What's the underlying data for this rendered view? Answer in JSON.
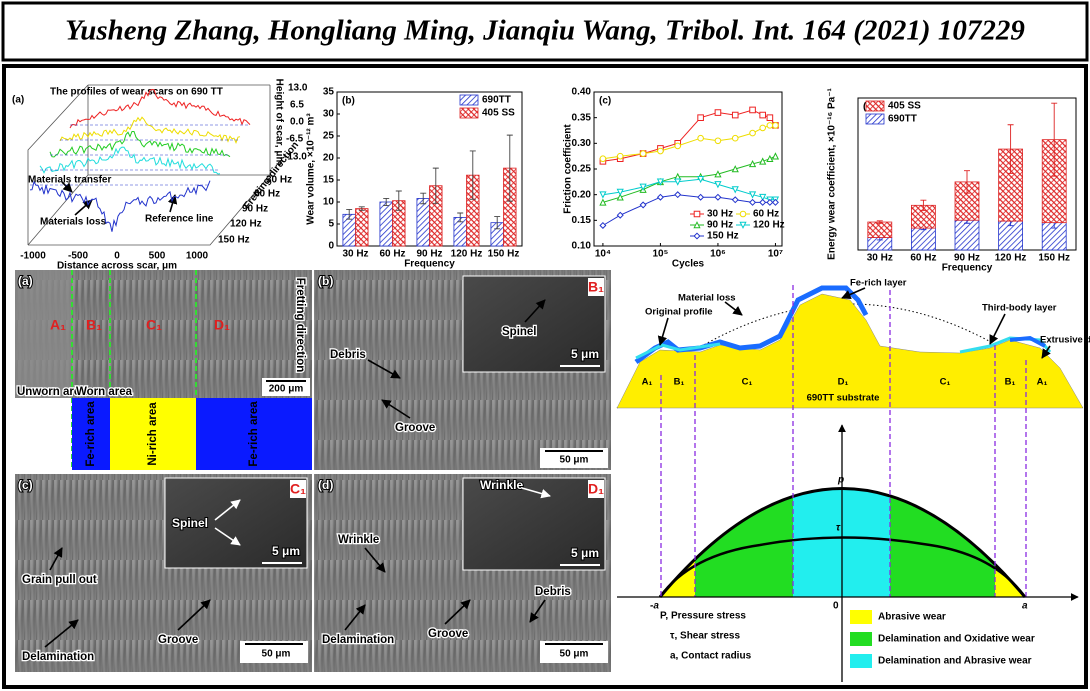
{
  "header": {
    "title": "Yusheng Zhang, Hongliang Ming, Jianqiu Wang, Tribol. Int.  164 (2021) 107229"
  },
  "profiles": {
    "label": "(a)",
    "title": "The profiles of wear scars on 690 TT",
    "x_label": "Distance across scar, μm",
    "y_label": "Height of scar, μm",
    "x_tick_labels": [
      "-1000",
      "-500",
      "0",
      "500",
      "1000"
    ],
    "z_tick_labels": [
      "13.0",
      "6.5",
      "0.0",
      "-6.5",
      "-13.0"
    ],
    "series_labels": [
      "30 Hz",
      "60 Hz",
      "90 Hz",
      "120 Hz",
      "150 Hz"
    ],
    "annotations": [
      "Materials transfer",
      "Materials loss",
      "Reference line",
      "Fretting direction"
    ]
  },
  "chart_data": [
    {
      "type": "bar",
      "label": "(b)",
      "x_label": "Frequency",
      "y_label": "Wear volume, ×10⁻¹² m³",
      "categories": [
        "30 Hz",
        "60 Hz",
        "90 Hz",
        "120 Hz",
        "150 Hz"
      ],
      "series": [
        {
          "name": "690TT",
          "color": "#2233cc",
          "values": [
            7.2,
            10,
            10.8,
            6.5,
            5.3
          ],
          "errors": [
            1.1,
            0.8,
            1.2,
            1.0,
            1.4
          ]
        },
        {
          "name": "405 SS",
          "color": "#dd2222",
          "values": [
            8.5,
            10.3,
            13.7,
            16.1,
            17.7
          ],
          "errors": [
            0.4,
            2.2,
            4.0,
            5.5,
            7.5
          ]
        }
      ],
      "ylim": [
        0,
        35
      ],
      "yticks": [
        0,
        5,
        10,
        15,
        20,
        25,
        30,
        35
      ],
      "legend": "upper right"
    },
    {
      "type": "line",
      "label": "(c)",
      "x_label": "Cycles",
      "y_label": "Friction coefficient",
      "xscale": "log",
      "x": [
        10000,
        20000,
        50000,
        100000,
        200000,
        500000,
        1000000,
        2000000,
        4000000,
        6000000,
        8000000,
        10000000
      ],
      "xlim": [
        7000,
        13000000
      ],
      "xticks": [
        {
          "value": 10000,
          "label": "10⁴"
        },
        {
          "value": 100000,
          "label": "10⁵"
        },
        {
          "value": 1000000,
          "label": "10⁶"
        },
        {
          "value": 10000000,
          "label": "10⁷"
        }
      ],
      "ylim": [
        0.1,
        0.4
      ],
      "yticks": [
        {
          "value": 0.1,
          "label": "0.10"
        },
        {
          "value": 0.15,
          "label": "0.15"
        },
        {
          "value": 0.2,
          "label": "0.20"
        },
        {
          "value": 0.25,
          "label": "0.25"
        },
        {
          "value": 0.3,
          "label": "0.30"
        },
        {
          "value": 0.35,
          "label": "0.35"
        },
        {
          "value": 0.4,
          "label": "0.40"
        }
      ],
      "series": [
        {
          "name": "30 Hz",
          "color": "#ee2222",
          "marker": "square",
          "values": [
            0.265,
            0.27,
            0.28,
            0.29,
            0.3,
            0.35,
            0.36,
            0.355,
            0.365,
            0.355,
            0.35,
            0.335
          ]
        },
        {
          "name": "60 Hz",
          "color": "#eedd00",
          "marker": "circle",
          "values": [
            0.27,
            0.275,
            0.28,
            0.285,
            0.295,
            0.31,
            0.305,
            0.31,
            0.32,
            0.33,
            0.335,
            0.335
          ]
        },
        {
          "name": "90 Hz",
          "color": "#22bb22",
          "marker": "triangle",
          "values": [
            0.185,
            0.195,
            0.21,
            0.225,
            0.235,
            0.235,
            0.24,
            0.25,
            0.26,
            0.265,
            0.27,
            0.275
          ]
        },
        {
          "name": "120 Hz",
          "color": "#00cccc",
          "marker": "triangle-down",
          "values": [
            0.2,
            0.205,
            0.215,
            0.225,
            0.225,
            0.23,
            0.22,
            0.21,
            0.2,
            0.195,
            0.19,
            0.19
          ]
        },
        {
          "name": "150 Hz",
          "color": "#2233cc",
          "marker": "diamond",
          "values": [
            0.14,
            0.16,
            0.18,
            0.195,
            0.2,
            0.195,
            0.195,
            0.19,
            0.185,
            0.185,
            0.185,
            0.185
          ]
        }
      ],
      "legend": "lower right"
    },
    {
      "type": "bar",
      "stacked": true,
      "label": "(d)",
      "x_label": "Frequency",
      "y_label": "Energy wear coefficient, ×10⁻¹⁶ Pa⁻¹",
      "categories": [
        "30 Hz",
        "60 Hz",
        "90 Hz",
        "120 Hz",
        "150 Hz"
      ],
      "series": [
        {
          "name": "690TT",
          "color": "#2233cc",
          "values": [
            4.1,
            7.2,
            9.8,
            9.5,
            9
          ],
          "errors": [
            0.8,
            0.5,
            1.0,
            1.5,
            1.8
          ]
        },
        {
          "name": "405 SS",
          "color": "#dd2222",
          "values": [
            5.1,
            7.5,
            12.6,
            23.7,
            27.3
          ],
          "errors": [
            0.4,
            1.7,
            3.7,
            8.0,
            12.0
          ]
        }
      ],
      "ylim": [
        0,
        50
      ],
      "legend": "upper left"
    }
  ],
  "sem": [
    {
      "label": "(a)",
      "regions": [
        "A₁",
        "B₁",
        "C₁",
        "D₁"
      ],
      "annotations": [
        "Fretting direction",
        "Unworn area",
        "Worn area"
      ],
      "scale_bar": "200 μm",
      "areas": [
        "Fe-rich area",
        "Ni-rich area",
        "Fe-rich area"
      ]
    },
    {
      "label": "(b)",
      "annotations": [
        "Debris",
        "Groove"
      ],
      "scale_bar": "50 μm",
      "inset": {
        "label": "B₁",
        "annotations": [
          "Spinel"
        ],
        "scale_bar": "5 μm"
      }
    },
    {
      "label": "(c)",
      "annotations": [
        "Grain pull out",
        "Delamination",
        "Groove"
      ],
      "scale_bar": "50 μm",
      "inset": {
        "label": "C₁",
        "annotations": [
          "Spinel"
        ],
        "scale_bar": "5 μm"
      }
    },
    {
      "label": "(d)",
      "annotations": [
        "Wrinkle",
        "Delamination",
        "Groove",
        "Debris"
      ],
      "scale_bar": "50 μm",
      "inset": {
        "label": "D₁",
        "annotations": [
          "Wrinkle"
        ],
        "scale_bar": "5 μm"
      }
    }
  ],
  "schematic": {
    "annotations": [
      "Fe-rich layer",
      "Material loss",
      "Original profile",
      "Third-body layer",
      "Extrusive debris"
    ],
    "regions": [
      "A₁",
      "B₁",
      "C₁",
      "D₁",
      "C₁",
      "B₁",
      "A₁"
    ],
    "substrate": "690TT substrate",
    "axis_labels": [
      "p",
      "τ",
      "-a",
      "0",
      "a"
    ],
    "notation": [
      "P, Pressure stress",
      "τ, Shear stress",
      "a, Contact radius"
    ],
    "legend": [
      {
        "name": "Abrasive wear",
        "color": "#ffff00"
      },
      {
        "name": "Delamination and Oxidative wear",
        "color": "#22dd22"
      },
      {
        "name": "Delamination and Abrasive wear",
        "color": "#22eeee"
      }
    ]
  }
}
